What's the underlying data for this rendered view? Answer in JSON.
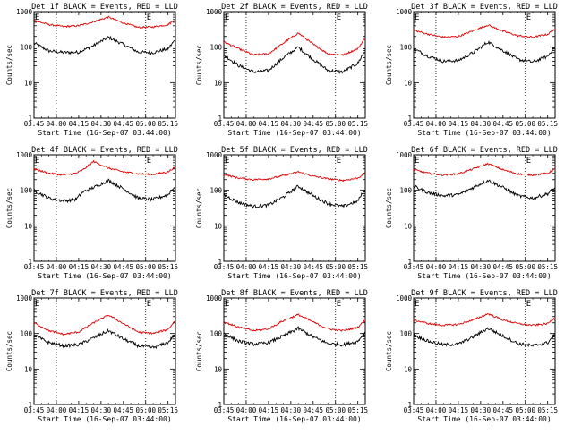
{
  "chart_data": [
    {
      "type": "line",
      "title": "Det 1f BLACK = Events, RED = LLD",
      "xlabel": "Start Time (16-Sep-07 03:44:00)",
      "ylabel": "Counts/sec",
      "yscale": "log",
      "ylim": [
        1,
        1000
      ],
      "ytick_labels": [
        "1",
        "10",
        "100",
        "1000"
      ],
      "x_tick_labels": [
        "03:45",
        "04:00",
        "04:15",
        "04:30",
        "04:45",
        "05:00",
        "05:15"
      ],
      "x_range_minutes": [
        0,
        95
      ],
      "markers": [
        "E",
        "E"
      ],
      "dotted_lines_at": [
        "04:00",
        "05:00"
      ],
      "x_minutes": [
        0,
        10,
        20,
        30,
        40,
        50,
        60,
        70,
        80,
        90,
        94
      ],
      "series": [
        {
          "name": "BLACK = Events",
          "color": "#000000",
          "values": [
            130,
            78,
            70,
            72,
            110,
            190,
            120,
            72,
            70,
            90,
            145
          ]
        },
        {
          "name": "RED = LLD",
          "color": "#e00000",
          "values": [
            560,
            430,
            380,
            400,
            520,
            700,
            480,
            360,
            370,
            430,
            570
          ]
        }
      ]
    },
    {
      "type": "line",
      "title": "Det 2f BLACK = Events, RED = LLD",
      "xlabel": "Start Time (16-Sep-07 03:44:00)",
      "ylabel": "Counts/sec",
      "yscale": "log",
      "ylim": [
        1,
        1000
      ],
      "ytick_labels": [
        "1",
        "10",
        "100",
        "1000"
      ],
      "x_tick_labels": [
        "03:45",
        "04:00",
        "04:15",
        "04:30",
        "04:45",
        "05:00",
        "05:15"
      ],
      "x_range_minutes": [
        0,
        95
      ],
      "markers": [
        "E",
        "E"
      ],
      "dotted_lines_at": [
        "04:00",
        "05:00"
      ],
      "x_minutes": [
        0,
        10,
        20,
        30,
        40,
        50,
        60,
        70,
        80,
        90,
        94
      ],
      "series": [
        {
          "name": "BLACK = Events",
          "color": "#000000",
          "values": [
            60,
            30,
            20,
            22,
            50,
            100,
            45,
            22,
            20,
            35,
            70
          ]
        },
        {
          "name": "RED = LLD",
          "color": "#e00000",
          "values": [
            140,
            90,
            60,
            65,
            130,
            250,
            120,
            65,
            60,
            90,
            160
          ]
        }
      ]
    },
    {
      "type": "line",
      "title": "Det 3f BLACK = Events, RED = LLD",
      "xlabel": "Start Time (16-Sep-07 03:44:00)",
      "ylabel": "Counts/sec",
      "yscale": "log",
      "ylim": [
        1,
        1000
      ],
      "ytick_labels": [
        "1",
        "10",
        "100",
        "1000"
      ],
      "x_tick_labels": [
        "03:45",
        "04:00",
        "04:15",
        "04:30",
        "04:45",
        "05:00",
        "05:15"
      ],
      "x_range_minutes": [
        0,
        95
      ],
      "markers": [
        "E",
        "E"
      ],
      "dotted_lines_at": [
        "04:00",
        "05:00"
      ],
      "x_minutes": [
        0,
        10,
        20,
        30,
        40,
        50,
        60,
        70,
        80,
        90,
        94
      ],
      "series": [
        {
          "name": "BLACK = Events",
          "color": "#000000",
          "values": [
            90,
            55,
            40,
            42,
            70,
            140,
            80,
            45,
            38,
            55,
            95
          ]
        },
        {
          "name": "RED = LLD",
          "color": "#e00000",
          "values": [
            300,
            230,
            190,
            200,
            290,
            420,
            280,
            210,
            190,
            230,
            310
          ]
        }
      ]
    },
    {
      "type": "line",
      "title": "Det 4f BLACK = Events, RED = LLD",
      "xlabel": "Start Time (16-Sep-07 03:44:00)",
      "ylabel": "Counts/sec",
      "yscale": "log",
      "ylim": [
        1,
        1000
      ],
      "ytick_labels": [
        "1",
        "10",
        "100",
        "1000"
      ],
      "x_tick_labels": [
        "03:45",
        "04:00",
        "04:15",
        "04:30",
        "04:45",
        "05:00",
        "05:15"
      ],
      "x_range_minutes": [
        0,
        95
      ],
      "markers": [
        "E",
        "E"
      ],
      "dotted_lines_at": [
        "04:00",
        "05:00"
      ],
      "x_minutes": [
        0,
        10,
        20,
        28,
        33,
        40,
        50,
        60,
        70,
        80,
        90,
        94
      ],
      "series": [
        {
          "name": "BLACK = Events",
          "color": "#000000",
          "values": [
            100,
            60,
            50,
            55,
            90,
            120,
            190,
            110,
            60,
            55,
            75,
            120
          ]
        },
        {
          "name": "RED = LLD",
          "color": "#e00000",
          "values": [
            400,
            300,
            270,
            300,
            380,
            650,
            420,
            330,
            290,
            280,
            330,
            430
          ]
        }
      ]
    },
    {
      "type": "line",
      "title": "Det 5f BLACK = Events, RED = LLD",
      "xlabel": "Start Time (16-Sep-07 03:44:00)",
      "ylabel": "Counts/sec",
      "yscale": "log",
      "ylim": [
        1,
        1000
      ],
      "ytick_labels": [
        "1",
        "10",
        "100",
        "1000"
      ],
      "x_tick_labels": [
        "03:45",
        "04:00",
        "04:15",
        "04:30",
        "04:45",
        "05:00",
        "05:15"
      ],
      "x_range_minutes": [
        0,
        95
      ],
      "markers": [
        "E",
        "E"
      ],
      "dotted_lines_at": [
        "04:00",
        "05:00"
      ],
      "x_minutes": [
        0,
        10,
        20,
        30,
        40,
        50,
        60,
        70,
        80,
        90,
        94
      ],
      "series": [
        {
          "name": "BLACK = Events",
          "color": "#000000",
          "values": [
            75,
            45,
            35,
            38,
            65,
            130,
            70,
            42,
            35,
            50,
            95
          ]
        },
        {
          "name": "RED = LLD",
          "color": "#e00000",
          "values": [
            280,
            220,
            200,
            210,
            260,
            330,
            250,
            210,
            190,
            220,
            290
          ]
        }
      ]
    },
    {
      "type": "line",
      "title": "Det 6f BLACK = Events, RED = LLD",
      "xlabel": "Start Time (16-Sep-07 03:44:00)",
      "ylabel": "Counts/sec",
      "yscale": "log",
      "ylim": [
        1,
        1000
      ],
      "ytick_labels": [
        "1",
        "10",
        "100",
        "1000"
      ],
      "x_tick_labels": [
        "03:45",
        "04:00",
        "04:15",
        "04:30",
        "04:45",
        "05:00",
        "05:15"
      ],
      "x_range_minutes": [
        0,
        95
      ],
      "markers": [
        "E",
        "E"
      ],
      "dotted_lines_at": [
        "04:00",
        "05:00"
      ],
      "x_minutes": [
        0,
        10,
        20,
        30,
        40,
        50,
        60,
        70,
        80,
        90,
        94
      ],
      "series": [
        {
          "name": "BLACK = Events",
          "color": "#000000",
          "values": [
            130,
            85,
            70,
            75,
            120,
            190,
            120,
            70,
            60,
            80,
            110
          ]
        },
        {
          "name": "RED = LLD",
          "color": "#e00000",
          "values": [
            380,
            300,
            270,
            290,
            400,
            560,
            380,
            290,
            270,
            300,
            380
          ]
        }
      ]
    },
    {
      "type": "line",
      "title": "Det 7f BLACK = Events, RED = LLD",
      "xlabel": "Start Time (16-Sep-07 03:44:00)",
      "ylabel": "Counts/sec",
      "yscale": "log",
      "ylim": [
        1,
        1000
      ],
      "ytick_labels": [
        "1",
        "10",
        "100",
        "1000"
      ],
      "x_tick_labels": [
        "03:45",
        "04:00",
        "04:15",
        "04:30",
        "04:45",
        "05:00",
        "05:15"
      ],
      "x_range_minutes": [
        0,
        95
      ],
      "markers": [
        "E",
        "E"
      ],
      "dotted_lines_at": [
        "04:00",
        "05:00"
      ],
      "x_minutes": [
        0,
        10,
        20,
        30,
        40,
        50,
        60,
        70,
        80,
        90,
        94
      ],
      "series": [
        {
          "name": "BLACK = Events",
          "color": "#000000",
          "values": [
            90,
            55,
            45,
            48,
            75,
            120,
            70,
            45,
            40,
            55,
            90
          ]
        },
        {
          "name": "RED = LLD",
          "color": "#e00000",
          "values": [
            200,
            120,
            95,
            110,
            200,
            330,
            190,
            110,
            100,
            130,
            210
          ]
        }
      ]
    },
    {
      "type": "line",
      "title": "Det 8f BLACK = Events, RED = LLD",
      "xlabel": "Start Time (16-Sep-07 03:44:00)",
      "ylabel": "Counts/sec",
      "yscale": "log",
      "ylim": [
        1,
        1000
      ],
      "ytick_labels": [
        "1",
        "10",
        "100",
        "1000"
      ],
      "x_tick_labels": [
        "03:45",
        "04:00",
        "04:15",
        "04:30",
        "04:45",
        "05:00",
        "05:15"
      ],
      "x_range_minutes": [
        0,
        95
      ],
      "markers": [
        "E",
        "E"
      ],
      "dotted_lines_at": [
        "04:00",
        "05:00"
      ],
      "x_minutes": [
        0,
        10,
        20,
        30,
        40,
        50,
        60,
        70,
        80,
        90,
        94
      ],
      "series": [
        {
          "name": "BLACK = Events",
          "color": "#000000",
          "values": [
            100,
            60,
            50,
            55,
            85,
            140,
            80,
            52,
            48,
            60,
            100
          ]
        },
        {
          "name": "RED = LLD",
          "color": "#e00000",
          "values": [
            210,
            150,
            120,
            135,
            230,
            340,
            210,
            135,
            120,
            150,
            220
          ]
        }
      ]
    },
    {
      "type": "line",
      "title": "Det 9f BLACK = Events, RED = LLD",
      "xlabel": "Start Time (16-Sep-07 03:44:00)",
      "ylabel": "Counts/sec",
      "yscale": "log",
      "ylim": [
        1,
        1000
      ],
      "ytick_labels": [
        "1",
        "10",
        "100",
        "1000"
      ],
      "x_tick_labels": [
        "03:45",
        "04:00",
        "04:15",
        "04:30",
        "04:45",
        "05:00",
        "05:15"
      ],
      "x_range_minutes": [
        0,
        95
      ],
      "markers": [
        "E",
        "E"
      ],
      "dotted_lines_at": [
        "04:00",
        "05:00"
      ],
      "x_minutes": [
        0,
        10,
        20,
        30,
        40,
        50,
        60,
        70,
        80,
        90,
        94
      ],
      "series": [
        {
          "name": "BLACK = Events",
          "color": "#000000",
          "values": [
            90,
            60,
            48,
            50,
            80,
            140,
            85,
            52,
            45,
            55,
            85
          ]
        },
        {
          "name": "RED = LLD",
          "color": "#e00000",
          "values": [
            240,
            190,
            170,
            180,
            240,
            360,
            240,
            190,
            170,
            190,
            260
          ]
        }
      ]
    }
  ]
}
